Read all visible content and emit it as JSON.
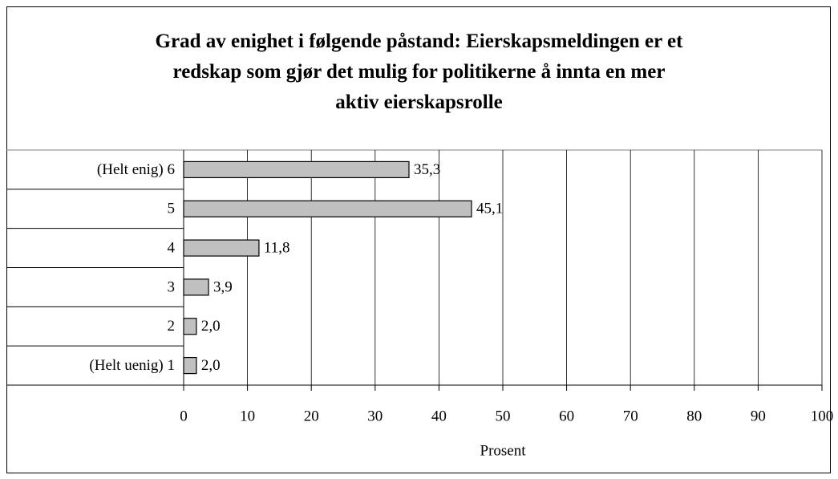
{
  "chart_data": {
    "type": "bar",
    "orientation": "horizontal",
    "title": "Grad av enighet i følgende påstand: Eierskapsmeldingen er et\nredskap som gjør det mulig for politikerne å innta en mer\naktiv eierskapsrolle",
    "categories": [
      "(Helt enig) 6",
      "5",
      "4",
      "3",
      "2",
      "(Helt uenig) 1"
    ],
    "values": [
      35.3,
      45.1,
      11.8,
      3.9,
      2.0,
      2.0
    ],
    "value_labels": [
      "35,3",
      "45,1",
      "11,8",
      "3,9",
      "2,0",
      "2,0"
    ],
    "color": "#c0c0c0",
    "xlabel": "Prosent",
    "xlim": [
      0,
      100
    ],
    "xticks": [
      0,
      10,
      20,
      30,
      40,
      50,
      60,
      70,
      80,
      90,
      100
    ],
    "grid": true
  }
}
